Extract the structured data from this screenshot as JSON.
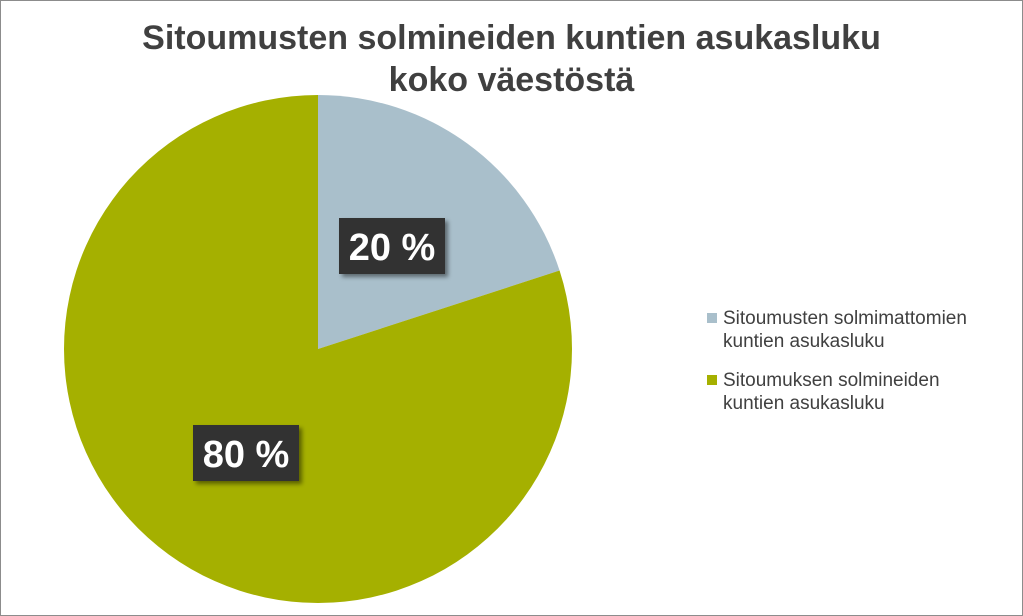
{
  "chart_data": {
    "type": "pie",
    "title": "Sitoumusten solmineiden kuntien asukasluku koko väestöstä",
    "title_lines": [
      "Sitoumusten solmineiden kuntien asukasluku",
      "koko väestöstä"
    ],
    "slices": [
      {
        "label": "Sitoumusten solmimattomien kuntien asukasluku",
        "value": 20,
        "data_label": "20 %",
        "color": "#a9bfcb"
      },
      {
        "label": "Sitoumuksen solmineiden kuntien asukasluku",
        "value": 80,
        "data_label": "80 %",
        "color": "#a5b000"
      }
    ],
    "legend_position": "right"
  },
  "legend": {
    "items": [
      {
        "line1": "Sitoumusten solmimattomien",
        "line2": "kuntien asukasluku"
      },
      {
        "line1": "Sitoumuksen solmineiden",
        "line2": "kuntien asukasluku"
      }
    ]
  },
  "colors": {
    "label_box": "#333333",
    "label_text": "#ffffff",
    "title_text": "#404040",
    "border": "#8c8c8c"
  }
}
